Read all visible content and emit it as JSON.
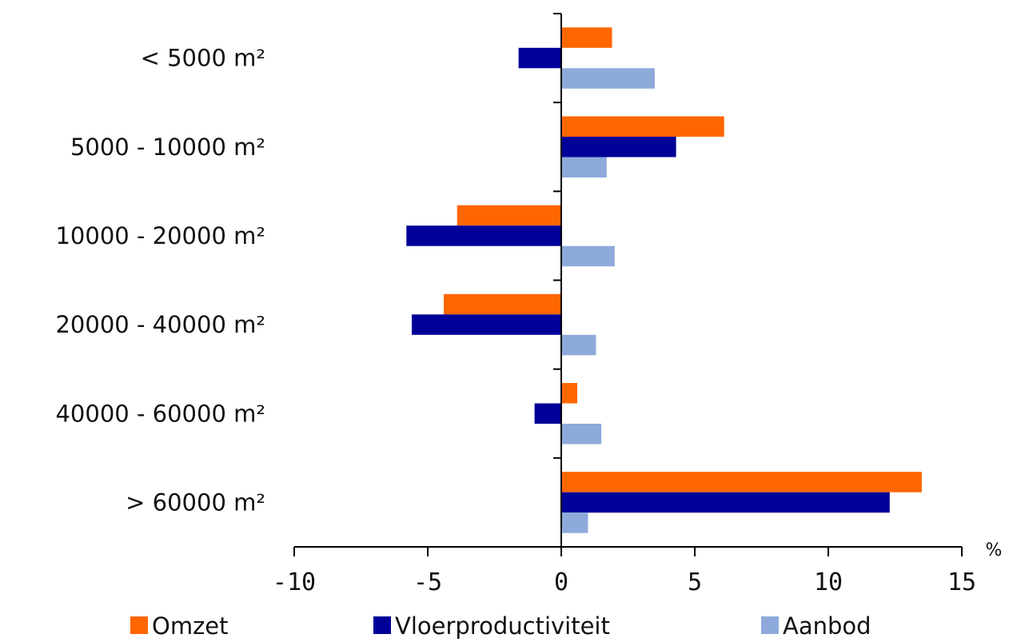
{
  "chart_data": {
    "type": "bar",
    "orientation": "horizontal",
    "categories": [
      "< 5000 m²",
      "5000 - 10000 m²",
      "10000 - 20000 m²",
      "20000 - 40000 m²",
      "40000 - 60000 m²",
      "> 60000 m²"
    ],
    "series": [
      {
        "name": "Omzet",
        "color": "#ff6600",
        "values": [
          1.9,
          6.1,
          -3.9,
          -4.4,
          0.6,
          13.5
        ]
      },
      {
        "name": "Vloerproductiviteit",
        "color": "#000099",
        "values": [
          -1.6,
          4.3,
          -5.8,
          -5.6,
          -1.0,
          12.3
        ]
      },
      {
        "name": "Aanbod",
        "color": "#8eaadb",
        "values": [
          3.5,
          1.7,
          2.0,
          1.3,
          1.5,
          1.0
        ]
      }
    ],
    "xlim": [
      -10,
      15
    ],
    "xticks": [
      -10,
      -5,
      0,
      5,
      10,
      15
    ],
    "xlabel": "%",
    "legend_position": "bottom"
  }
}
